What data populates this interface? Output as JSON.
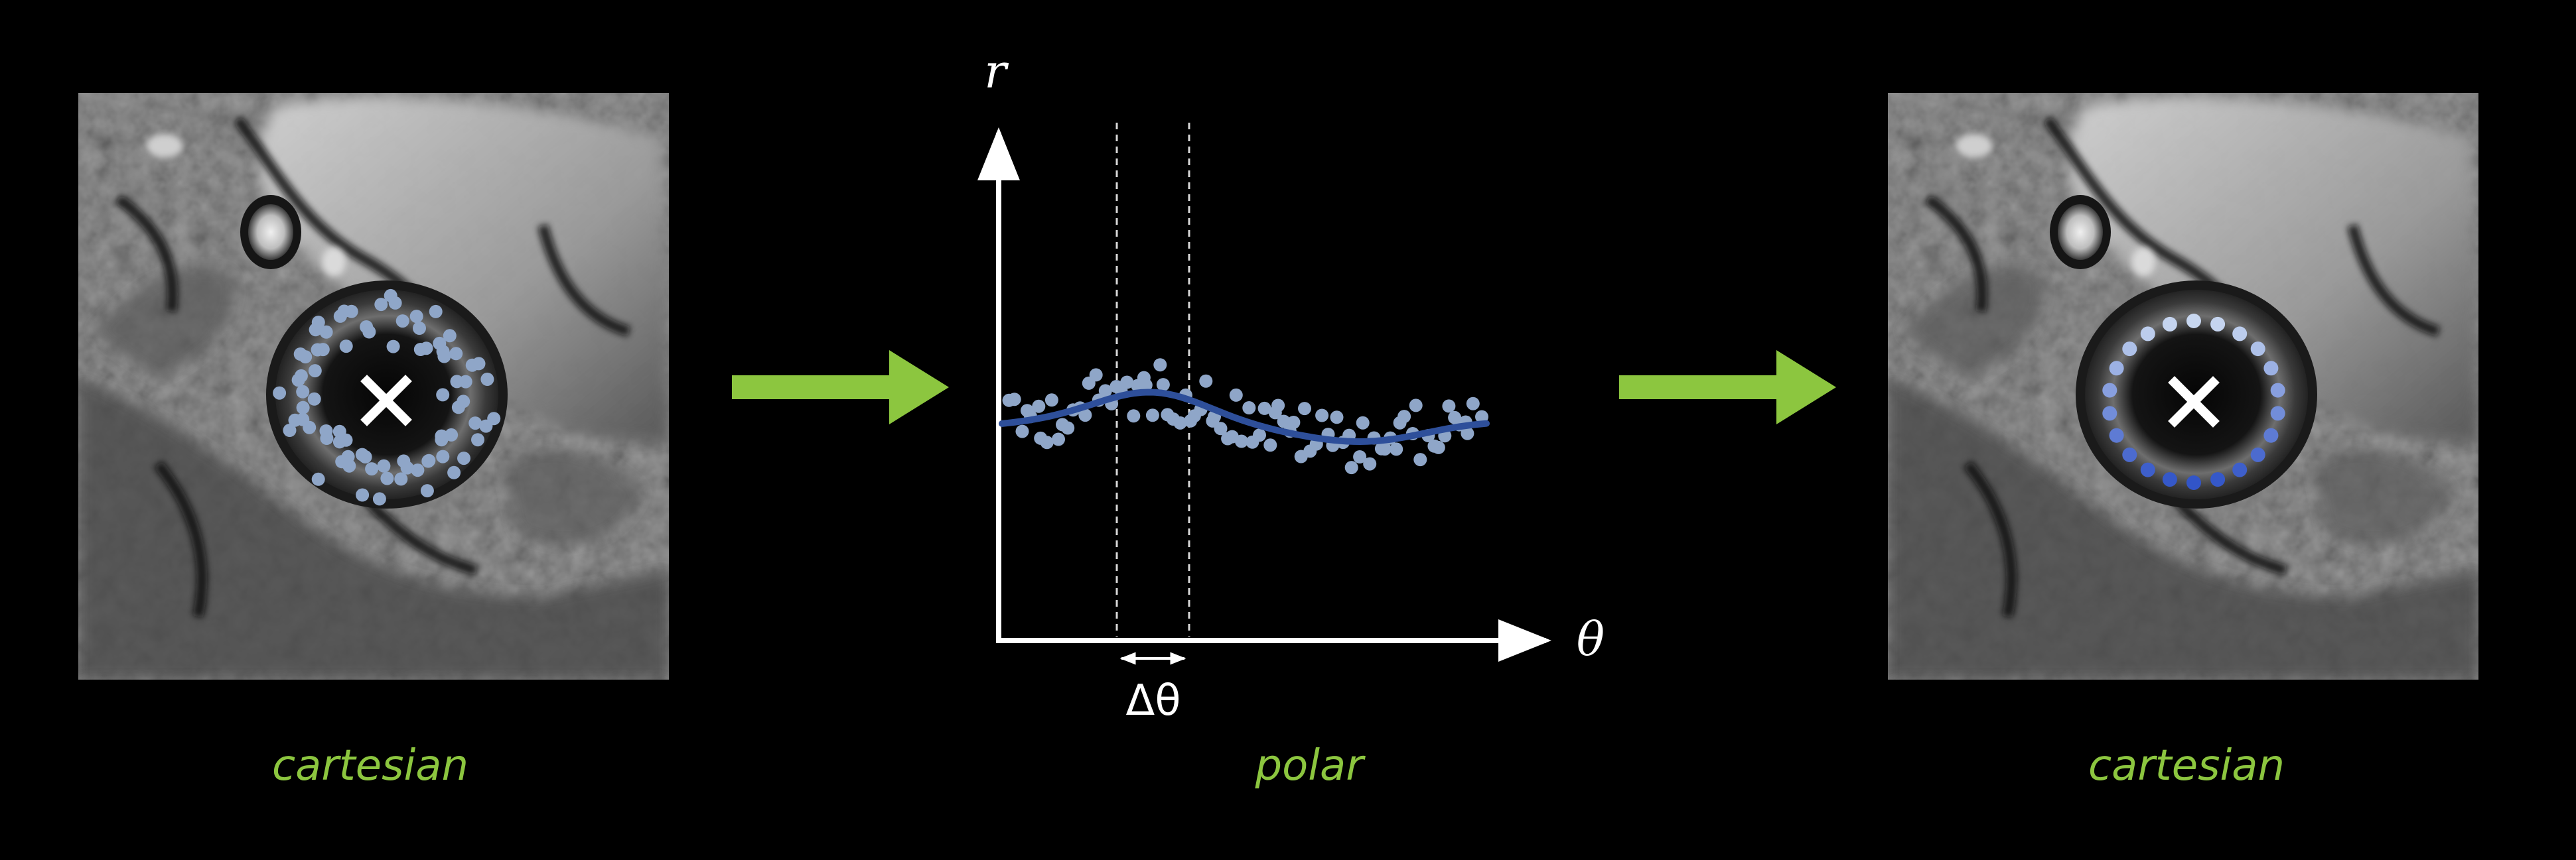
{
  "captions": {
    "left": "cartesian",
    "middle": "polar",
    "right": "cartesian"
  },
  "axes": {
    "y_label": "r",
    "x_label": "θ",
    "delta_label": "Δθ"
  },
  "colors": {
    "background": "#000000",
    "arrow": "#8cc63f",
    "caption": "#8cc63f",
    "point_light": "#8fa6c8",
    "curve": "#2e4f9a",
    "axis": "#ffffff"
  },
  "icons": {
    "center_marker": "cross-icon",
    "flow_arrow": "right-arrow-icon"
  }
}
